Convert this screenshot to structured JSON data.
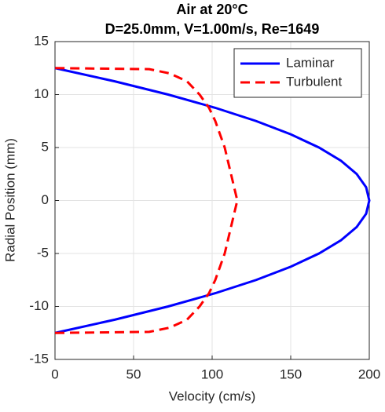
{
  "chart_data": {
    "type": "line",
    "title": "Air at 20°C",
    "subtitle": "D=25.0mm, V=1.00m/s, Re=1649",
    "xlabel": "Velocity (cm/s)",
    "ylabel": "Radial Position (mm)",
    "xlim": [
      0,
      200
    ],
    "ylim": [
      -15,
      15
    ],
    "xticks": [
      0,
      50,
      100,
      150,
      200
    ],
    "yticks": [
      -15,
      -10,
      -5,
      0,
      5,
      10,
      15
    ],
    "grid": true,
    "legend": "upper right",
    "series": [
      {
        "name": "Laminar",
        "color": "#0000ff",
        "linestyle": "solid",
        "x": [
          0,
          38,
          72,
          102,
          128,
          150,
          168,
          182,
          192,
          198,
          200,
          198,
          192,
          182,
          168,
          150,
          128,
          102,
          72,
          38,
          0
        ],
        "y": [
          -12.5,
          -11.25,
          -10,
          -8.75,
          -7.5,
          -6.25,
          -5,
          -3.75,
          -2.5,
          -1.25,
          0,
          1.25,
          2.5,
          3.75,
          5,
          6.25,
          7.5,
          8.75,
          10,
          11.25,
          12.5
        ]
      },
      {
        "name": "Turbulent",
        "color": "#ff0000",
        "linestyle": "dashed",
        "x": [
          0,
          60,
          73,
          84,
          92,
          98,
          102,
          105,
          108,
          110,
          112,
          114,
          116,
          114,
          112,
          110,
          108,
          105,
          102,
          98,
          92,
          84,
          73,
          60,
          0
        ],
        "y": [
          -12.5,
          -12.4,
          -12,
          -11.25,
          -10,
          -8.75,
          -7.5,
          -6.25,
          -5,
          -3.75,
          -2.5,
          -1.25,
          0,
          1.25,
          2.5,
          3.75,
          5,
          6.25,
          7.5,
          8.75,
          10,
          11.25,
          12,
          12.4,
          12.5
        ]
      }
    ]
  }
}
